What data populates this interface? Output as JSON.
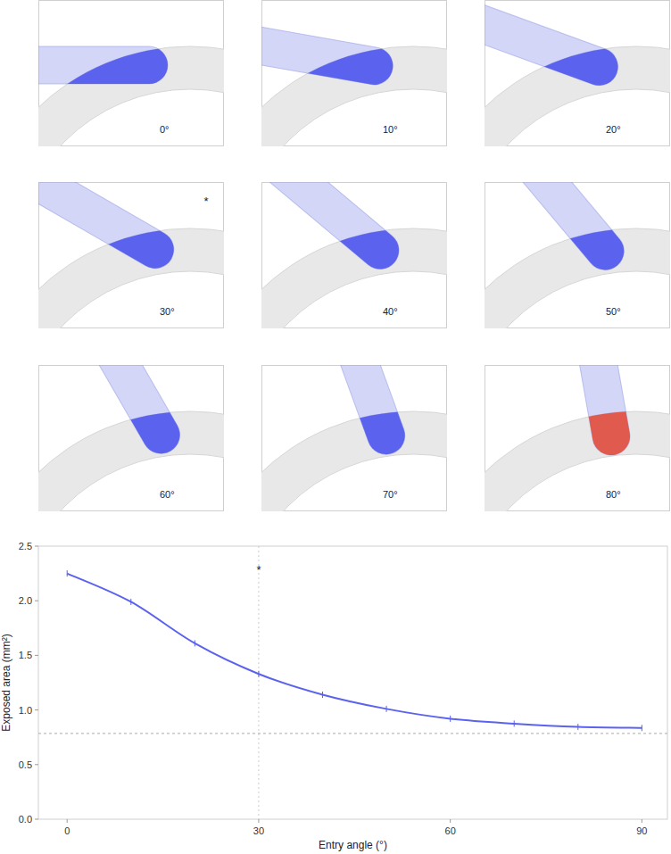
{
  "panels": {
    "items": [
      {
        "label": "0°",
        "angle": 0,
        "color": "#5b63ee"
      },
      {
        "label": "10°",
        "angle": 10,
        "color": "#5b63ee"
      },
      {
        "label": "20°",
        "angle": 20,
        "color": "#5b63ee"
      },
      {
        "label": "30°",
        "angle": 30,
        "color": "#5b63ee",
        "annotation": "*"
      },
      {
        "label": "40°",
        "angle": 40,
        "color": "#5b63ee"
      },
      {
        "label": "50°",
        "angle": 50,
        "color": "#5b63ee"
      },
      {
        "label": "60°",
        "angle": 60,
        "color": "#5b63ee"
      },
      {
        "label": "70°",
        "angle": 70,
        "color": "#5b63ee"
      },
      {
        "label": "80°",
        "angle": 80,
        "color": "#e05a4e"
      }
    ]
  },
  "chart_data": {
    "type": "line",
    "xlabel": "Entry angle (°)",
    "ylabel": "Exposed area (mm²)",
    "x": [
      0,
      10,
      20,
      30,
      40,
      50,
      60,
      70,
      80,
      90
    ],
    "values": [
      2.25,
      1.99,
      1.61,
      1.33,
      1.14,
      1.01,
      0.92,
      0.875,
      0.845,
      0.835
    ],
    "color": "#5b63ee",
    "marker": "tick",
    "xlim": [
      -4.5,
      94
    ],
    "ylim": [
      0,
      2.5
    ],
    "xticks": [
      0,
      30,
      60,
      90
    ],
    "yticks": [
      {
        "value": 0,
        "label": "0.0"
      },
      0.5,
      {
        "value": 1,
        "label": "1.0"
      },
      {
        "value": 1.5,
        "label": "1.5"
      },
      {
        "value": 2,
        "label": "2.0"
      },
      2.5
    ],
    "reference_y": 0.785,
    "reference_x": 30,
    "annotations": [
      {
        "x": 30,
        "y": 2.29,
        "text": "*"
      }
    ],
    "grid": false
  }
}
